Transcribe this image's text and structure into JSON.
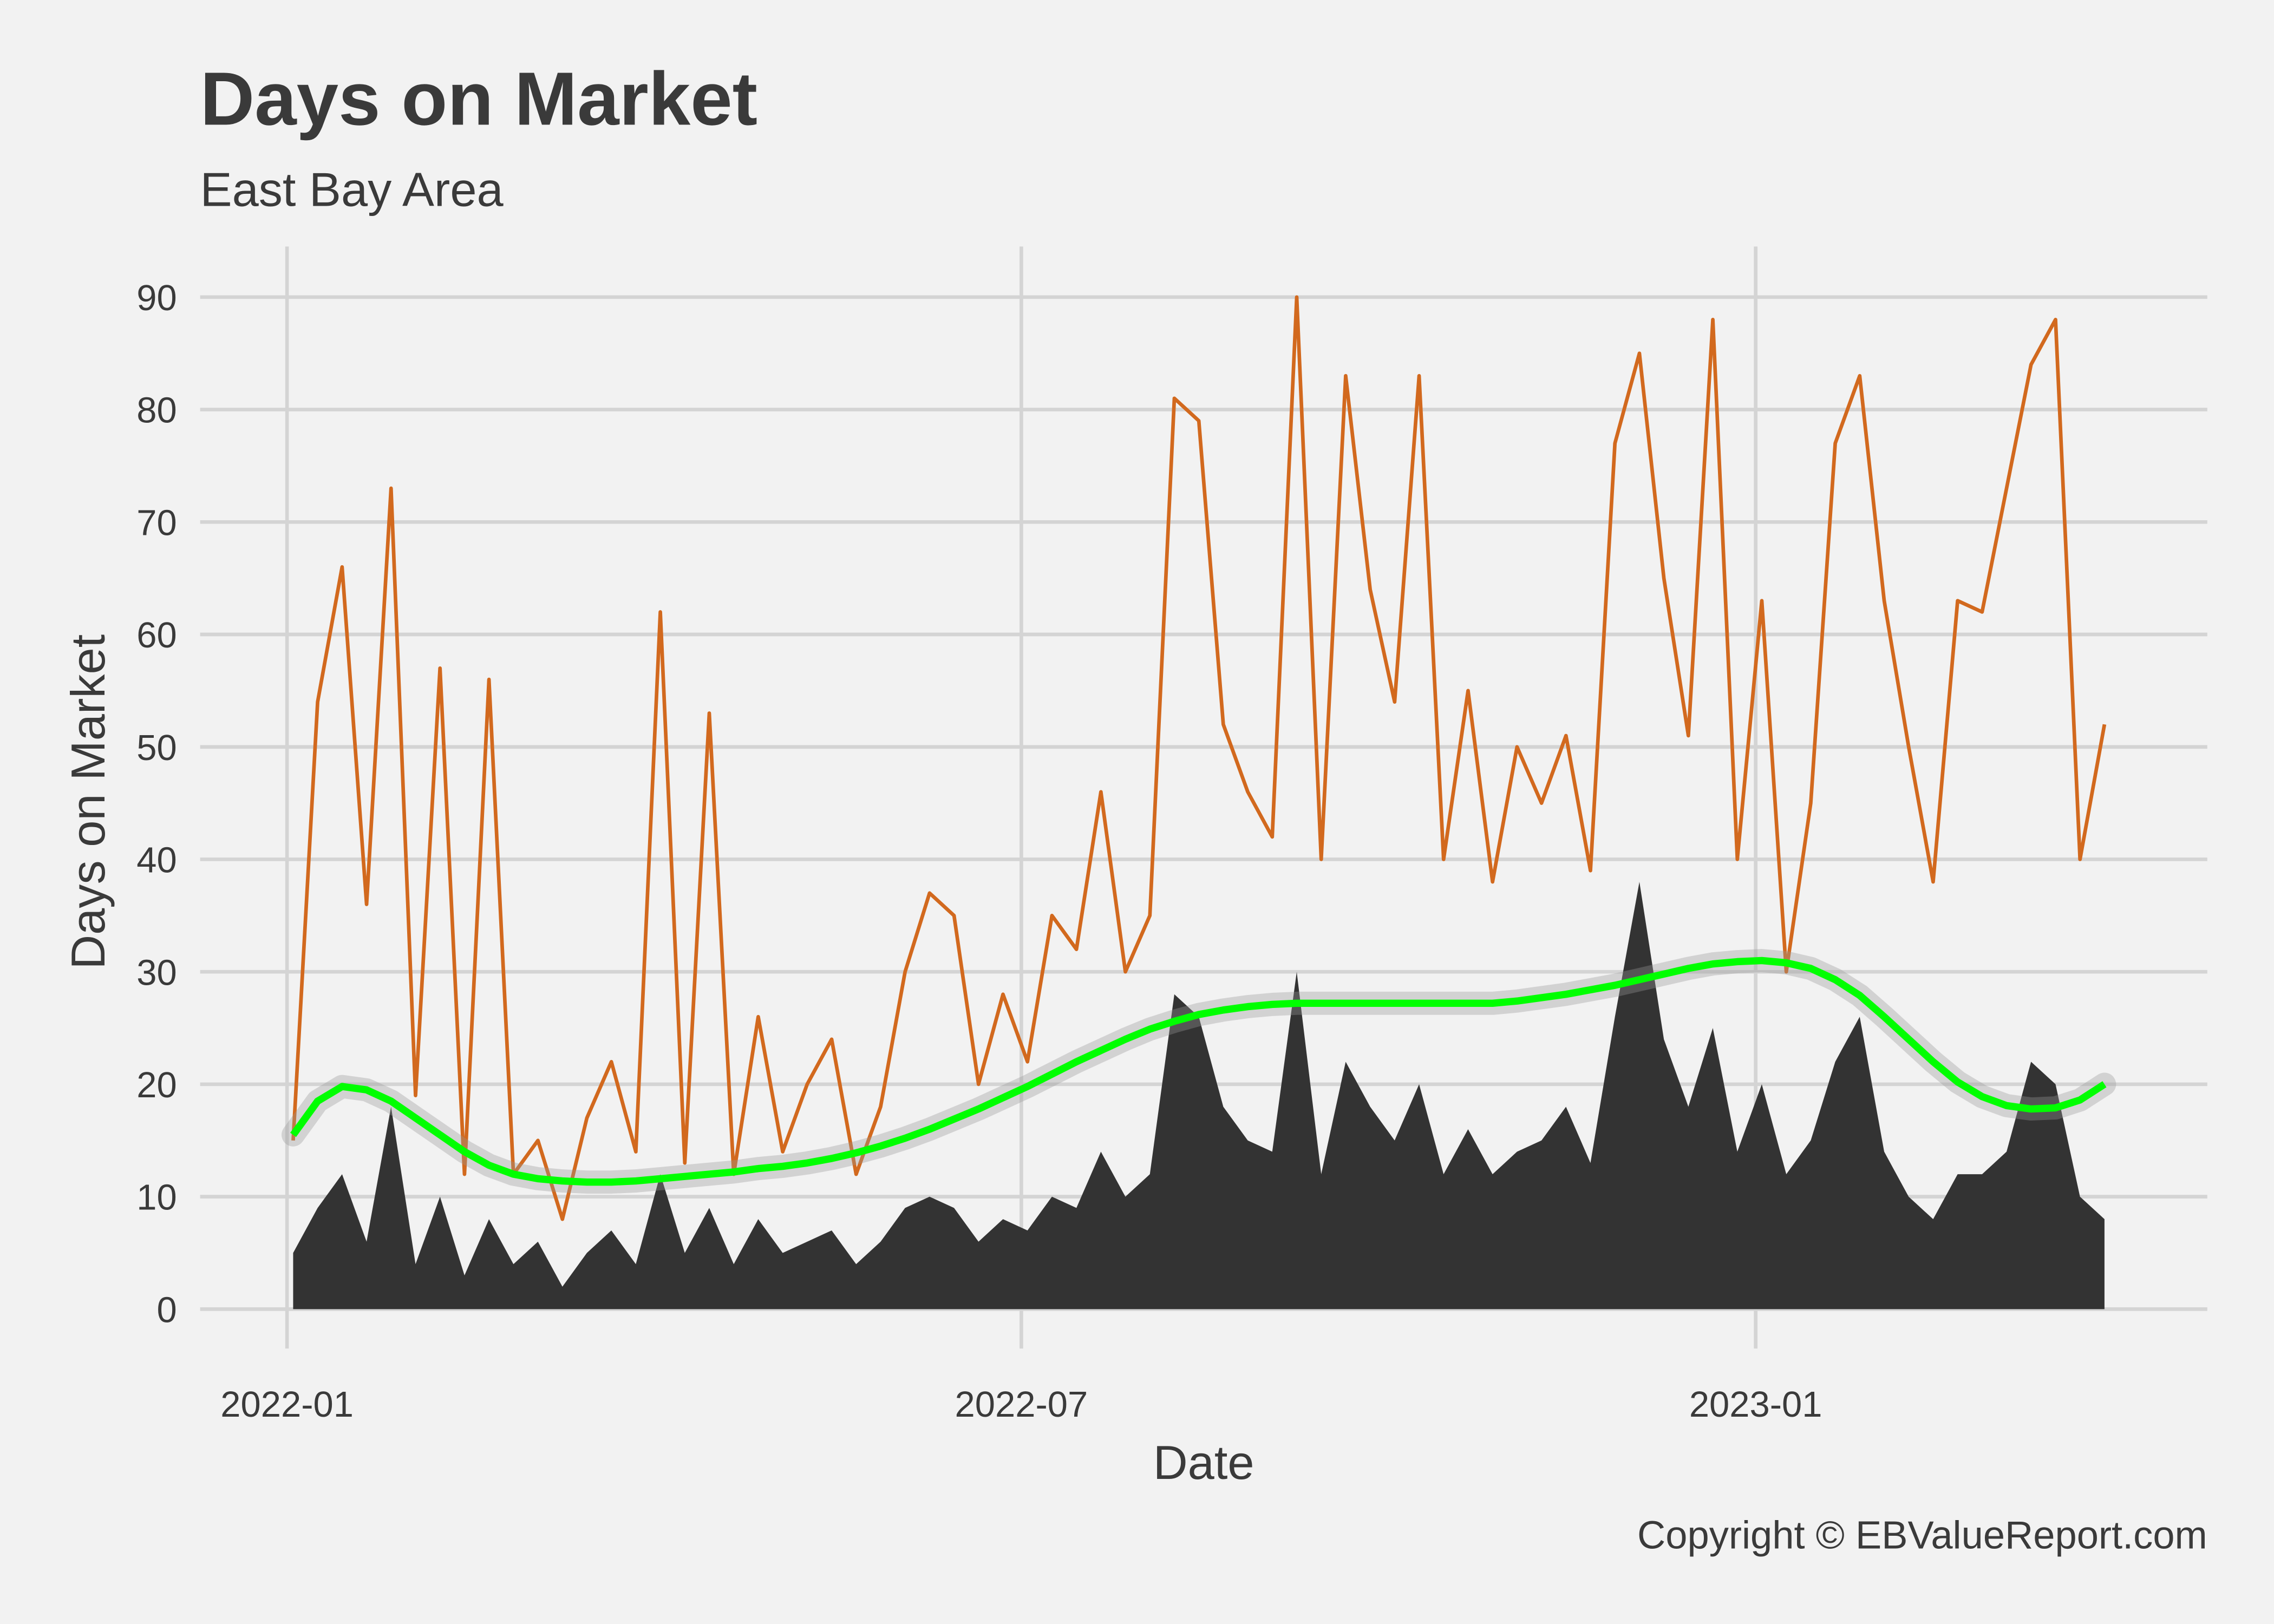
{
  "chart_data": {
    "type": "line",
    "title": "Days on Market",
    "subtitle": "East Bay Area",
    "x_label": "Date",
    "y_label": "Days on Market",
    "caption": "Copyright  © EBValueReport.com",
    "grid": true,
    "xlim": [
      -0.71,
      15.69
    ],
    "xticks": [
      {
        "value": 0,
        "label": "2022-01"
      },
      {
        "value": 6,
        "label": "2022-07"
      },
      {
        "value": 12,
        "label": "2023-01"
      }
    ],
    "ylim": [
      -3.5,
      94.5
    ],
    "yticks": [
      0,
      10,
      20,
      30,
      40,
      50,
      60,
      70,
      80,
      90
    ],
    "x": [
      0.05,
      0.25,
      0.45,
      0.65,
      0.85,
      1.05,
      1.25,
      1.45,
      1.65,
      1.85,
      2.05,
      2.25,
      2.45,
      2.65,
      2.85,
      3.05,
      3.25,
      3.45,
      3.65,
      3.85,
      4.05,
      4.25,
      4.45,
      4.65,
      4.85,
      5.05,
      5.25,
      5.45,
      5.65,
      5.85,
      6.05,
      6.25,
      6.45,
      6.65,
      6.85,
      7.05,
      7.25,
      7.45,
      7.65,
      7.85,
      8.05,
      8.25,
      8.45,
      8.65,
      8.85,
      9.05,
      9.25,
      9.45,
      9.65,
      9.85,
      10.05,
      10.25,
      10.45,
      10.65,
      10.85,
      11.05,
      11.25,
      11.45,
      11.65,
      11.85,
      12.05,
      12.25,
      12.45,
      12.65,
      12.85,
      13.05,
      13.25,
      13.45,
      13.65,
      13.85,
      14.05,
      14.25,
      14.45,
      14.65,
      14.85
    ],
    "series": [
      {
        "type": "area",
        "color": "#333333",
        "values": [
          5,
          9,
          12,
          6,
          18,
          4,
          10,
          3,
          8,
          4,
          6,
          2,
          5,
          7,
          4,
          12,
          5,
          9,
          4,
          8,
          5,
          6,
          7,
          4,
          6,
          9,
          10,
          9,
          6,
          8,
          7,
          10,
          9,
          14,
          10,
          12,
          28,
          26,
          18,
          15,
          14,
          30,
          12,
          22,
          18,
          15,
          20,
          12,
          16,
          12,
          14,
          15,
          18,
          13,
          26,
          38,
          24,
          18,
          25,
          14,
          20,
          12,
          15,
          22,
          26,
          14,
          10,
          8,
          12,
          12,
          14,
          22,
          20,
          10,
          8
        ]
      },
      {
        "type": "line",
        "color": "#d2691e",
        "values": [
          15,
          54,
          66,
          36,
          73,
          19,
          57,
          12,
          56,
          12,
          15,
          8,
          17,
          22,
          14,
          62,
          13,
          53,
          12,
          26,
          14,
          20,
          24,
          12,
          18,
          30,
          37,
          35,
          20,
          28,
          22,
          35,
          32,
          46,
          30,
          35,
          81,
          79,
          52,
          46,
          42,
          90,
          40,
          83,
          64,
          54,
          83,
          40,
          55,
          38,
          50,
          45,
          51,
          39,
          77,
          85,
          65,
          51,
          88,
          40,
          63,
          30,
          45,
          77,
          83,
          63,
          50,
          38,
          63,
          62,
          73,
          84,
          88,
          40,
          52
        ]
      },
      {
        "type": "smooth",
        "color": "#00ff00",
        "values": [
          15.5,
          18.5,
          19.8,
          19.5,
          18.5,
          17,
          15.5,
          14,
          12.8,
          12,
          11.6,
          11.4,
          11.3,
          11.3,
          11.4,
          11.6,
          11.8,
          12,
          12.2,
          12.5,
          12.7,
          13,
          13.4,
          13.9,
          14.5,
          15.2,
          16,
          16.9,
          17.8,
          18.8,
          19.8,
          20.9,
          22,
          23,
          24,
          24.9,
          25.6,
          26.2,
          26.6,
          26.9,
          27.1,
          27.2,
          27.2,
          27.2,
          27.2,
          27.2,
          27.2,
          27.2,
          27.2,
          27.2,
          27.4,
          27.7,
          28,
          28.4,
          28.8,
          29.3,
          29.8,
          30.3,
          30.7,
          30.9,
          31,
          30.8,
          30.3,
          29.3,
          27.9,
          26,
          24,
          22,
          20.2,
          18.9,
          18.1,
          17.8,
          17.9,
          18.6,
          20
        ]
      }
    ]
  }
}
